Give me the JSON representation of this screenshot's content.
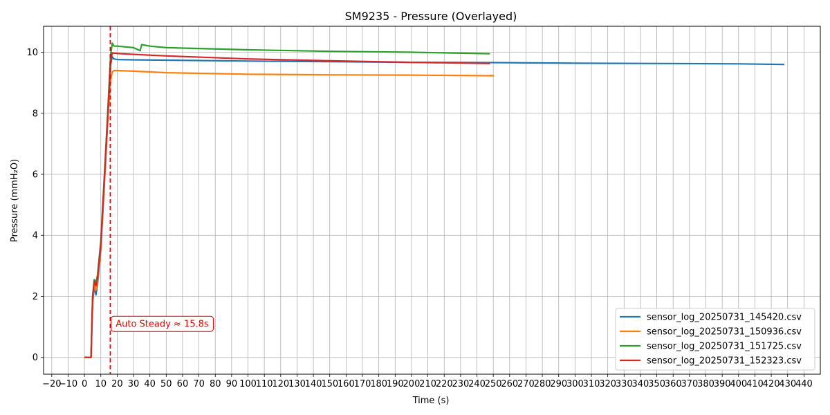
{
  "chart_data": {
    "type": "line",
    "title": "SM9235 - Pressure (Overlayed)",
    "xlabel": "Time (s)",
    "ylabel": "Pressure (mmH₂O)",
    "xlim": [
      -25,
      450
    ],
    "ylim": [
      -0.55,
      10.85
    ],
    "xticks": [
      -20,
      -10,
      0,
      10,
      20,
      30,
      40,
      50,
      60,
      70,
      80,
      90,
      100,
      110,
      120,
      130,
      140,
      150,
      160,
      170,
      180,
      190,
      200,
      210,
      220,
      230,
      240,
      250,
      260,
      270,
      280,
      290,
      300,
      310,
      320,
      330,
      340,
      350,
      360,
      370,
      380,
      390,
      400,
      410,
      420,
      430,
      440
    ],
    "xtick_labels": [
      "−20",
      "−10",
      "0",
      "10",
      "20",
      "30",
      "40",
      "50",
      "60",
      "70",
      "80",
      "90",
      "100",
      "110",
      "120",
      "130",
      "140",
      "150",
      "160",
      "170",
      "180",
      "190",
      "200",
      "210",
      "220",
      "230",
      "240",
      "250",
      "260",
      "270",
      "280",
      "290",
      "300",
      "310",
      "320",
      "330",
      "340",
      "350",
      "360",
      "370",
      "380",
      "390",
      "400",
      "410",
      "420",
      "430",
      "440"
    ],
    "yticks": [
      0,
      2,
      4,
      6,
      8,
      10
    ],
    "ytick_labels": [
      "0",
      "2",
      "4",
      "6",
      "8",
      "10"
    ],
    "grid": true,
    "legend_position": "bottom-right",
    "series": [
      {
        "name": "sensor_log_20250731_145420.csv",
        "color": "#1f77b4",
        "x": [
          0,
          4,
          5,
          6,
          7,
          8,
          10,
          12,
          14,
          16,
          17,
          18,
          20,
          30,
          50,
          100,
          150,
          200,
          250,
          300,
          350,
          400,
          428
        ],
        "y": [
          0,
          0,
          1.8,
          2.3,
          2.05,
          2.4,
          3.5,
          5.5,
          7.5,
          9.6,
          9.85,
          9.78,
          9.76,
          9.75,
          9.74,
          9.71,
          9.69,
          9.67,
          9.66,
          9.64,
          9.63,
          9.62,
          9.6
        ]
      },
      {
        "name": "sensor_log_20250731_150936.csv",
        "color": "#ff7f0e",
        "x": [
          0,
          4,
          5,
          6,
          7,
          8,
          10,
          12,
          14,
          16,
          17,
          18,
          20,
          30,
          50,
          100,
          150,
          200,
          250,
          248
        ],
        "y": [
          0,
          0,
          1.9,
          2.4,
          2.2,
          2.5,
          3.6,
          5.6,
          7.6,
          9.1,
          9.35,
          9.4,
          9.4,
          9.38,
          9.33,
          9.28,
          9.26,
          9.25,
          9.23,
          9.24
        ]
      },
      {
        "name": "sensor_log_20250731_151725.csv",
        "color": "#2ca02c",
        "x": [
          0,
          4,
          5,
          6,
          7,
          8,
          10,
          12,
          14,
          16,
          17,
          18,
          20,
          30,
          34,
          35,
          40,
          50,
          100,
          150,
          200,
          248
        ],
        "y": [
          0,
          0,
          2.0,
          2.55,
          2.45,
          2.7,
          3.8,
          5.8,
          7.8,
          9.9,
          10.3,
          10.2,
          10.2,
          10.15,
          10.05,
          10.25,
          10.2,
          10.15,
          10.08,
          10.03,
          10.0,
          9.95
        ]
      },
      {
        "name": "sensor_log_20250731_152323.csv",
        "color": "#d62728",
        "x": [
          0,
          4,
          5,
          6,
          7,
          8,
          10,
          12,
          14,
          16,
          17,
          18,
          20,
          30,
          50,
          100,
          150,
          200,
          248
        ],
        "y": [
          0,
          0,
          2.0,
          2.5,
          2.35,
          2.6,
          3.7,
          5.7,
          7.7,
          9.7,
          9.98,
          9.97,
          9.96,
          9.93,
          9.88,
          9.78,
          9.72,
          9.67,
          9.63
        ]
      }
    ],
    "annotations": [
      {
        "type": "vline",
        "x": 15.8,
        "color": "#e60000",
        "style": "dashed",
        "label": "Auto Steady ≈ 15.8s",
        "label_y": 1.1
      }
    ]
  }
}
